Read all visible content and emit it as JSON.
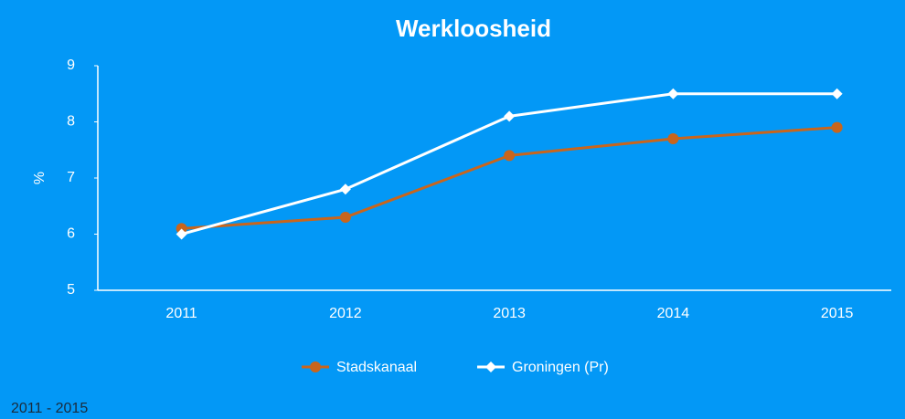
{
  "chart_data": {
    "type": "line",
    "title": "Werkloosheid",
    "ylabel": "%",
    "categories": [
      "2011",
      "2012",
      "2013",
      "2014",
      "2015"
    ],
    "series": [
      {
        "name": "Stadskanaal",
        "color": "#c9651c",
        "marker": "circle",
        "values": [
          6.1,
          6.3,
          7.4,
          7.7,
          7.9
        ]
      },
      {
        "name": "Groningen (Pr)",
        "color": "#ffffff",
        "marker": "diamond",
        "values": [
          6.0,
          6.8,
          8.1,
          8.5,
          8.5
        ]
      }
    ],
    "ylim": [
      5,
      9
    ],
    "yticks": [
      5,
      6,
      7,
      8,
      9
    ],
    "grid": false,
    "legend": "bottom",
    "footnote": "2011 - 2015"
  }
}
